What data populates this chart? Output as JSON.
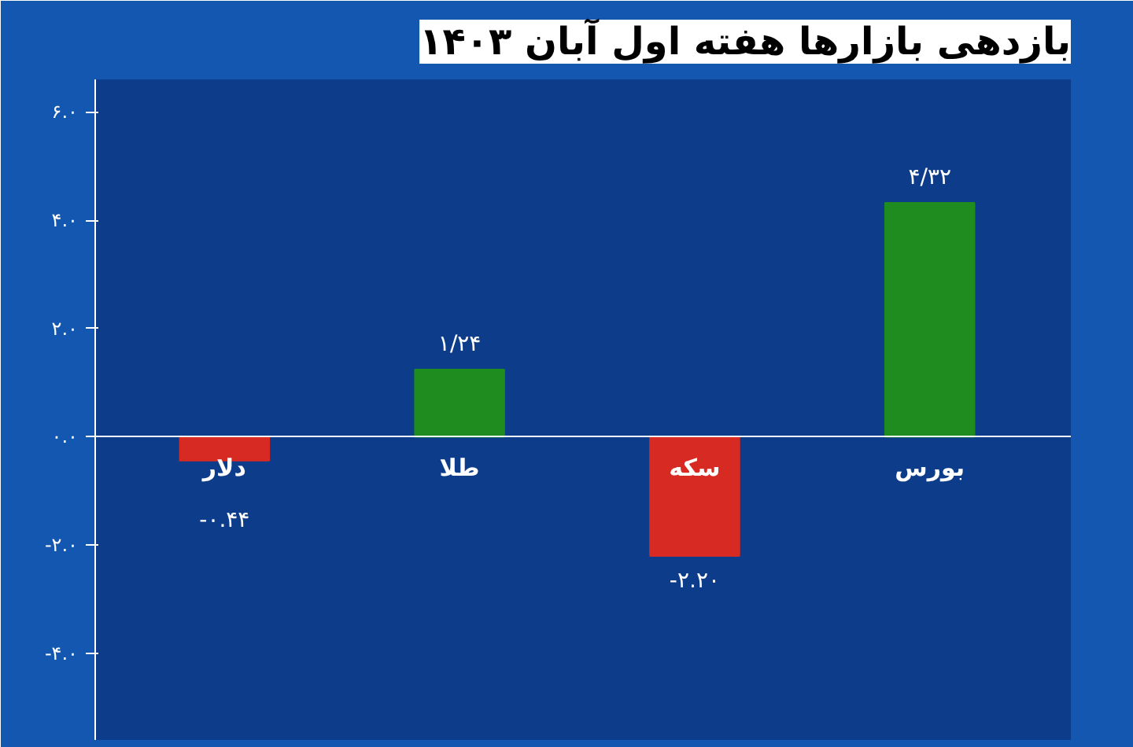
{
  "chart_data": {
    "type": "bar",
    "title": "بازدهی بازارها هفته اول آبان ۱۴۰۳",
    "categories": [
      "دلار",
      "طلا",
      "سکه",
      "بورس"
    ],
    "values": [
      -0.44,
      1.24,
      -2.2,
      4.32
    ],
    "colors": [
      "#d62a22",
      "#1e8c1e",
      "#d62a22",
      "#1e8c1e"
    ],
    "value_labels": [
      "-۰.۴۴",
      "۱/۲۴",
      "-۲.۲۰",
      "۴/۳۲"
    ],
    "ylim": [
      -5.6,
      6.6
    ],
    "yticks": [
      {
        "value": 6,
        "label": "۶.۰"
      },
      {
        "value": 4,
        "label": "۴.۰"
      },
      {
        "value": 2,
        "label": "۲.۰"
      },
      {
        "value": 0,
        "label": "۰.۰"
      },
      {
        "value": -2,
        "label": "-۲.۰"
      },
      {
        "value": -4,
        "label": "-۴.۰"
      }
    ],
    "grid": false
  }
}
